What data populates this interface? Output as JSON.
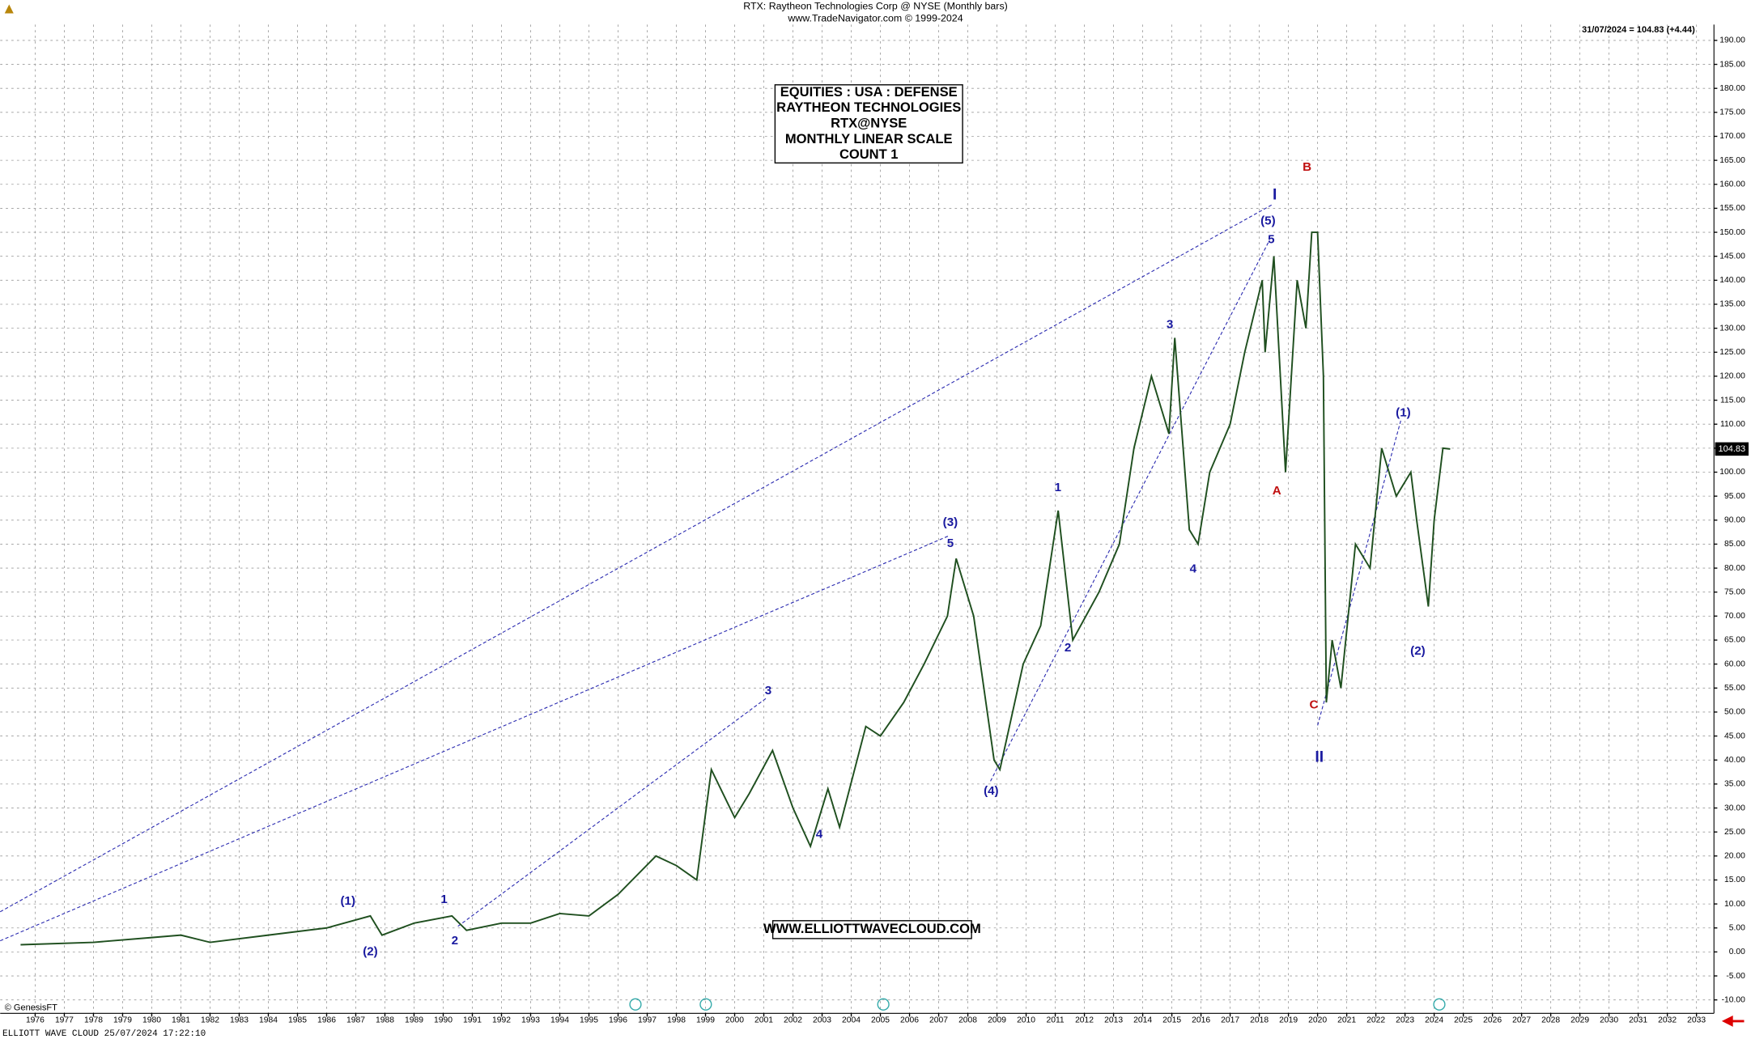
{
  "chart_data": {
    "type": "line",
    "title": "RTX:  Raytheon Technologies Corp @ NYSE  (Monthly bars)",
    "subtitle": "www.TradeNavigator.com © 1999-2024",
    "last_quote": "31/07/2024 = 104.83 (+4.44)",
    "info_box": [
      "EQUITIES : USA : DEFENSE",
      "RAYTHEON TECHNOLOGIES",
      "RTX@NYSE",
      "MONTHLY LINEAR SCALE",
      "COUNT 1"
    ],
    "website": "WWW.ELLIOTTWAVECLOUD.COM",
    "copyright": "© GenesisFT",
    "footer": "ELLIOTT WAVE CLOUD   25/07/2024 17:22:10",
    "last_value": 104.83,
    "series": [
      {
        "name": "RTX",
        "color": "#1f4f1f",
        "x": [
          1975.5,
          1978,
          1980,
          1981,
          1982,
          1984,
          1986,
          1987.5,
          1987.9,
          1989,
          1990.3,
          1990.8,
          1992,
          1993,
          1994,
          1995,
          1996,
          1997.3,
          1998,
          1998.7,
          1999.2,
          2000,
          2000.5,
          2001.3,
          2002,
          2002.6,
          2003.2,
          2003.6,
          2004.5,
          2005,
          2005.8,
          2006.5,
          2007.3,
          2007.6,
          2008.2,
          2008.9,
          2009.1,
          2009.9,
          2010.5,
          2011.1,
          2011.6,
          2012.5,
          2013.2,
          2013.7,
          2014.3,
          2014.9,
          2015.1,
          2015.6,
          2015.9,
          2016.3,
          2017,
          2017.5,
          2018.1,
          2018.2,
          2018.5,
          2018.9,
          2019.3,
          2019.6,
          2019.8,
          2020.0,
          2020.2,
          2020.3,
          2020.5,
          2020.8,
          2021.3,
          2021.8,
          2022.2,
          2022.7,
          2023.2,
          2023.4,
          2023.8,
          2024.0,
          2024.3,
          2024.55
        ],
        "values": [
          1.5,
          2,
          3,
          3.5,
          2,
          3.5,
          5,
          7.5,
          3.5,
          6,
          7.5,
          4.5,
          6,
          6,
          8,
          7.5,
          12,
          20,
          18,
          15,
          38,
          28,
          33,
          42,
          30,
          22,
          34,
          26,
          47,
          45,
          52,
          60,
          70,
          82,
          70,
          40,
          38,
          60,
          68,
          92,
          65,
          75,
          85,
          105,
          120,
          108,
          128,
          88,
          85,
          100,
          110,
          125,
          140,
          125,
          145,
          100,
          140,
          130,
          150,
          150,
          120,
          52,
          65,
          55,
          85,
          80,
          105,
          95,
          100,
          90,
          72,
          90,
          105,
          104.83
        ]
      }
    ],
    "annotations": [
      {
        "text": "(1)",
        "x": 1986.73,
        "y": 10.5,
        "color": "#1a1aa0"
      },
      {
        "text": "(2)",
        "x": 1987.5,
        "y": 0,
        "color": "#1a1aa0"
      },
      {
        "text": "1",
        "x": 1990.03,
        "y": 10.9,
        "color": "#1a1aa0"
      },
      {
        "text": "2",
        "x": 1990.4,
        "y": 2.3,
        "color": "#1a1aa0"
      },
      {
        "text": "3",
        "x": 2001.15,
        "y": 54.4,
        "color": "#1a1aa0"
      },
      {
        "text": "4",
        "x": 2002.9,
        "y": 24.4,
        "color": "#1a1aa0"
      },
      {
        "text": "(3)",
        "x": 2007.4,
        "y": 89.5,
        "color": "#1a1aa0"
      },
      {
        "text": "5",
        "x": 2007.4,
        "y": 85.1,
        "color": "#1a1aa0"
      },
      {
        "text": "(4)",
        "x": 2008.8,
        "y": 33.5,
        "color": "#1a1aa0"
      },
      {
        "text": "1",
        "x": 2011.09,
        "y": 96.7,
        "color": "#1a1aa0"
      },
      {
        "text": "2",
        "x": 2011.43,
        "y": 63.3,
        "color": "#1a1aa0"
      },
      {
        "text": "3",
        "x": 2014.93,
        "y": 130.7,
        "color": "#1a1aa0"
      },
      {
        "text": "4",
        "x": 2015.73,
        "y": 79.8,
        "color": "#1a1aa0"
      },
      {
        "text": "5",
        "x": 2018.41,
        "y": 148.4,
        "color": "#1a1aa0"
      },
      {
        "text": "(5)",
        "x": 2018.3,
        "y": 152.3,
        "color": "#1a1aa0"
      },
      {
        "text": "I",
        "x": 2018.53,
        "y": 157.7,
        "color": "#1a1aa0"
      },
      {
        "text": "B",
        "x": 2019.64,
        "y": 163.5,
        "color": "#c01010"
      },
      {
        "text": "A",
        "x": 2018.6,
        "y": 96,
        "color": "#c01010"
      },
      {
        "text": "C",
        "x": 2019.87,
        "y": 51.4,
        "color": "#c01010"
      },
      {
        "text": "II",
        "x": 2020.06,
        "y": 40.5,
        "color": "#1a1aa0"
      },
      {
        "text": "(1)",
        "x": 2022.94,
        "y": 112.3,
        "color": "#1a1aa0"
      },
      {
        "text": "(2)",
        "x": 2023.44,
        "y": 62.6,
        "color": "#1a1aa0"
      }
    ],
    "xlim": [
      1974.8,
      2033.6
    ],
    "xticks": [
      1976,
      1977,
      1978,
      1979,
      1980,
      1981,
      1982,
      1983,
      1984,
      1985,
      1986,
      1987,
      1988,
      1989,
      1990,
      1991,
      1992,
      1993,
      1994,
      1995,
      1996,
      1997,
      1998,
      1999,
      2000,
      2001,
      2002,
      2003,
      2004,
      2005,
      2006,
      2007,
      2008,
      2009,
      2010,
      2011,
      2012,
      2013,
      2014,
      2015,
      2016,
      2017,
      2018,
      2019,
      2020,
      2021,
      2022,
      2023,
      2024,
      2025,
      2026,
      2027,
      2028,
      2029,
      2030,
      2031,
      2032,
      2033
    ],
    "ylim": [
      -12.8,
      193.3
    ],
    "yticks": [
      {
        "value": -10,
        "label": "-10.00"
      },
      {
        "value": -5,
        "label": "-5.00"
      },
      {
        "value": 0,
        "label": "0.00"
      },
      {
        "value": 5,
        "label": "5.00"
      },
      {
        "value": 10,
        "label": "10.00"
      },
      {
        "value": 15,
        "label": "15.00"
      },
      {
        "value": 20,
        "label": "20.00"
      },
      {
        "value": 25,
        "label": "25.00"
      },
      {
        "value": 30,
        "label": "30.00"
      },
      {
        "value": 35,
        "label": "35.00"
      },
      {
        "value": 40,
        "label": "40.00"
      },
      {
        "value": 45,
        "label": "45.00"
      },
      {
        "value": 50,
        "label": "50.00"
      },
      {
        "value": 55,
        "label": "55.00"
      },
      {
        "value": 60,
        "label": "60.00"
      },
      {
        "value": 65,
        "label": "65.00"
      },
      {
        "value": 70,
        "label": "70.00"
      },
      {
        "value": 75,
        "label": "75.00"
      },
      {
        "value": 80,
        "label": "80.00"
      },
      {
        "value": 85,
        "label": "85.00"
      },
      {
        "value": 90,
        "label": "90.00"
      },
      {
        "value": 95,
        "label": "95.00"
      },
      {
        "value": 100,
        "label": "100.00"
      },
      {
        "value": 105,
        "label": "105.00"
      },
      {
        "value": 110,
        "label": "110.00"
      },
      {
        "value": 115,
        "label": "115.00"
      },
      {
        "value": 120,
        "label": "120.00"
      },
      {
        "value": 125,
        "label": "125.00"
      },
      {
        "value": 130,
        "label": "130.00"
      },
      {
        "value": 135,
        "label": "135.00"
      },
      {
        "value": 140,
        "label": "140.00"
      },
      {
        "value": 145,
        "label": "145.00"
      },
      {
        "value": 150,
        "label": "150.00"
      },
      {
        "value": 155,
        "label": "155.00"
      },
      {
        "value": 160,
        "label": "160.00"
      },
      {
        "value": 165,
        "label": "165.00"
      },
      {
        "value": 170,
        "label": "170.00"
      },
      {
        "value": 175,
        "label": "175.00"
      },
      {
        "value": 180,
        "label": "180.00"
      },
      {
        "value": 185,
        "label": "185.00"
      },
      {
        "value": 190,
        "label": "190.00"
      }
    ],
    "grid": true
  }
}
